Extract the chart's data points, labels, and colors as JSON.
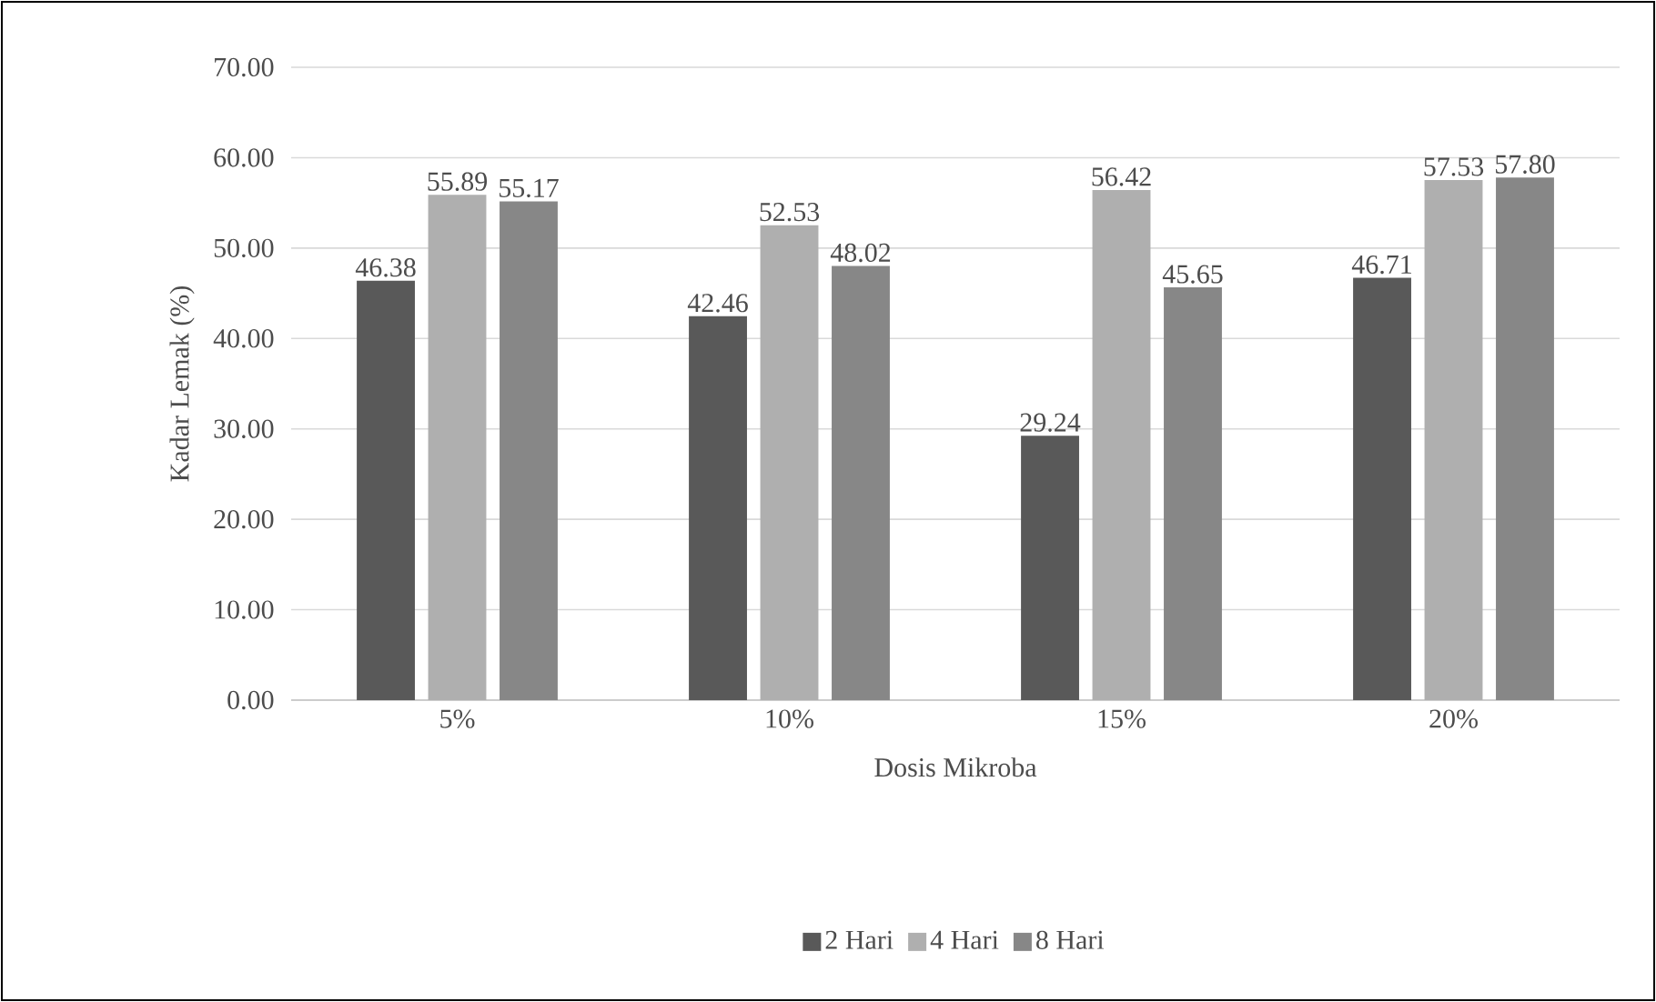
{
  "chart_data": {
    "type": "bar",
    "xlabel": "Dosis Mikroba",
    "ylabel": "Kadar Lemak (%)",
    "categories": [
      "5%",
      "10%",
      "15%",
      "20%"
    ],
    "series": [
      {
        "name": "2 Hari",
        "color": "#595959",
        "values": [
          46.38,
          42.46,
          29.24,
          46.71
        ],
        "value_labels": [
          "46.38",
          "42.46",
          "29.24",
          "46.71"
        ]
      },
      {
        "name": "4 Hari",
        "color": "#afafaf",
        "values": [
          55.89,
          52.53,
          56.42,
          57.53
        ],
        "value_labels": [
          "55.89",
          "52.53",
          "56.42",
          "57.53"
        ]
      },
      {
        "name": "8 Hari",
        "color": "#878787",
        "values": [
          55.17,
          48.02,
          45.65,
          57.8
        ],
        "value_labels": [
          "55.17",
          "48.02",
          "45.65",
          "57.80"
        ]
      }
    ],
    "ylim": [
      0,
      70
    ],
    "yticks": [
      {
        "value": 0,
        "label": "0.00"
      },
      {
        "value": 10,
        "label": "10.00"
      },
      {
        "value": 20,
        "label": "20.00"
      },
      {
        "value": 30,
        "label": "30.00"
      },
      {
        "value": 40,
        "label": "40.00"
      },
      {
        "value": 50,
        "label": "50.00"
      },
      {
        "value": 60,
        "label": "60.00"
      },
      {
        "value": 70,
        "label": "70.00"
      }
    ],
    "grid": "y",
    "legend": "bottom"
  }
}
